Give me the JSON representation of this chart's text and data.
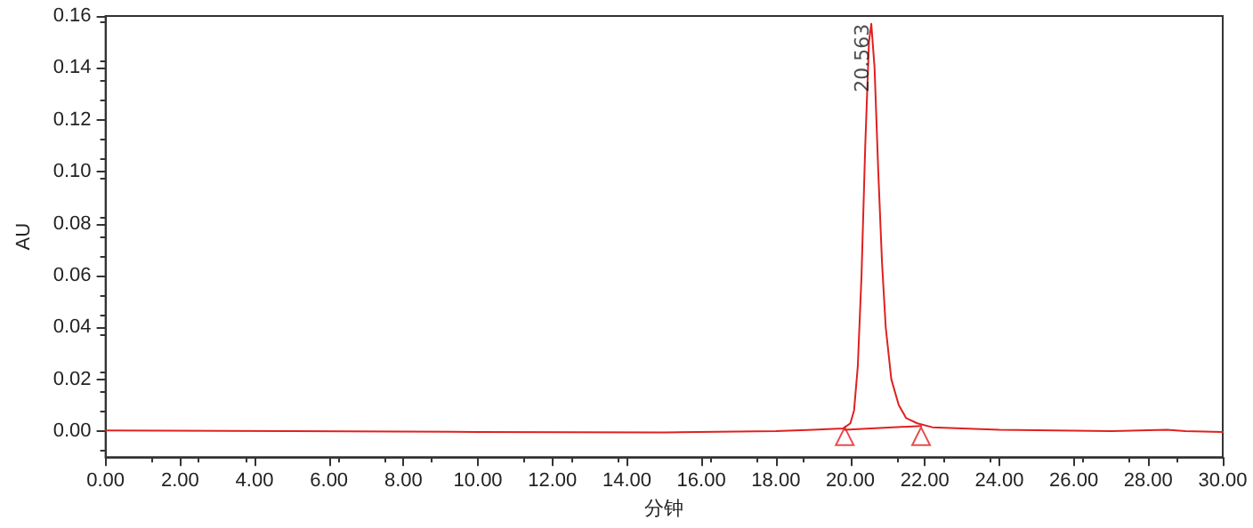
{
  "chart_data": {
    "type": "line",
    "xlabel": "分钟",
    "ylabel": "AU",
    "xlim": [
      0,
      30
    ],
    "ylim": [
      -0.01,
      0.16
    ],
    "xticks": [
      {
        "value": 0,
        "label": "0.00"
      },
      {
        "value": 2,
        "label": "2.00"
      },
      {
        "value": 4,
        "label": "4.00"
      },
      {
        "value": 6,
        "label": "6.00"
      },
      {
        "value": 8,
        "label": "8.00"
      },
      {
        "value": 10,
        "label": "10.00"
      },
      {
        "value": 12,
        "label": "12.00"
      },
      {
        "value": 14,
        "label": "14.00"
      },
      {
        "value": 16,
        "label": "16.00"
      },
      {
        "value": 18,
        "label": "18.00"
      },
      {
        "value": 20,
        "label": "20.00"
      },
      {
        "value": 22,
        "label": "22.00"
      },
      {
        "value": 24,
        "label": "24.00"
      },
      {
        "value": 26,
        "label": "26.00"
      },
      {
        "value": 28,
        "label": "28.00"
      },
      {
        "value": 30,
        "label": "30.00"
      }
    ],
    "yticks": [
      {
        "value": 0,
        "label": "0.00"
      },
      {
        "value": 0.02,
        "label": "0.02"
      },
      {
        "value": 0.04,
        "label": "0.04"
      },
      {
        "value": 0.06,
        "label": "0.06"
      },
      {
        "value": 0.08,
        "label": "0.08"
      },
      {
        "value": 0.1,
        "label": "0.10"
      },
      {
        "value": 0.12,
        "label": "0.12"
      },
      {
        "value": 0.14,
        "label": "0.14"
      },
      {
        "value": 0.16,
        "label": "0.16"
      }
    ],
    "grid": false,
    "marker": "none",
    "line_style": "solid",
    "series": [
      {
        "color": "#e02020",
        "x": [
          0,
          5,
          10,
          15,
          18,
          19,
          19.8,
          20,
          20.1,
          20.2,
          20.3,
          20.4,
          20.5,
          20.563,
          20.65,
          20.75,
          20.85,
          20.95,
          21.1,
          21.3,
          21.5,
          21.8,
          22.2,
          23,
          24,
          27,
          28.5,
          29,
          30
        ],
        "values": [
          0.0003,
          0,
          -0.0003,
          -0.0005,
          0,
          0.0005,
          0.001,
          0.003,
          0.008,
          0.025,
          0.06,
          0.11,
          0.15,
          0.157,
          0.14,
          0.1,
          0.065,
          0.04,
          0.02,
          0.01,
          0.005,
          0.003,
          0.0015,
          0.001,
          0.0005,
          0,
          0.0005,
          0,
          -0.0003
        ]
      },
      {
        "color": "#e02020",
        "x": [
          19.85,
          21.9
        ],
        "values": [
          0.0005,
          0.002
        ]
      },
      {
        "type": "scatter",
        "marker": "triangle",
        "color": "#e02020",
        "x": [
          19.85,
          21.9
        ],
        "values": [
          -0.002,
          -0.002
        ]
      }
    ],
    "annotations": [
      {
        "text": "20.563",
        "x": 20.563,
        "y": 0.157
      }
    ]
  }
}
